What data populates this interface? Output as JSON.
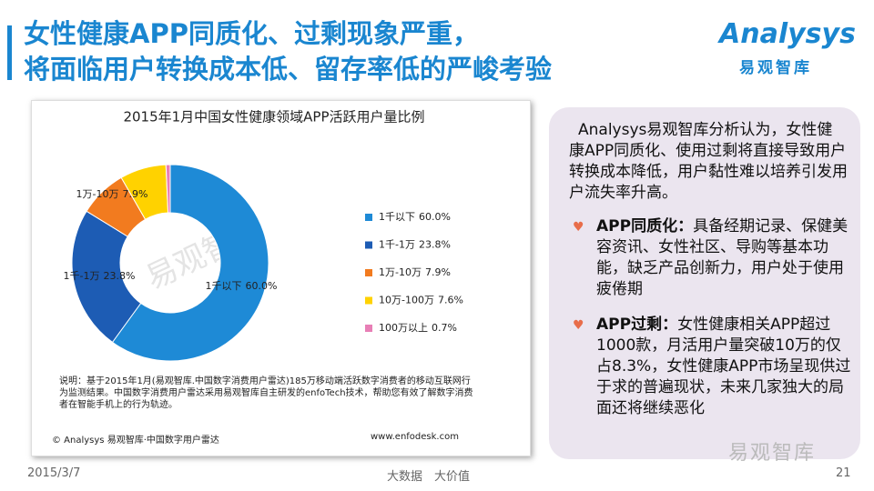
{
  "header": {
    "title_lines": [
      "女性健康APP同质化、过剩现象严重，",
      "将面临用户转换成本低、留存率低的严峻考验"
    ],
    "logo": "Analysys",
    "logo_cn": "易观智库"
  },
  "chart_data": {
    "type": "donut",
    "title": "2015年1月中国女性健康领域APP活跃用户量比例",
    "categories": [
      "1千以下",
      "1千-1万",
      "1万-10万",
      "10万-100万",
      "100万以上"
    ],
    "values": [
      60.0,
      23.8,
      7.9,
      7.6,
      0.7
    ],
    "value_labels": [
      "60.0%",
      "23.8%",
      "7.9%",
      "7.6%",
      "0.7%"
    ],
    "colors": [
      "#1e8ad6",
      "#1d5cb4",
      "#f27b1f",
      "#ffd200",
      "#e87fb6"
    ],
    "legend": "right",
    "watermark": "易观智库",
    "note": "说明：基于2015年1月(易观智库.中国数字消费用户雷达)185万移动端活跃数字消费者的移动互联网行为监测结果。中国数字消费用户雷达采用易观智库自主研发的enfoTech技术，帮助您有效了解数字消费者在智能手机上的行为轨迹。",
    "source": "© Analysys 易观智库·中国数字用户雷达",
    "website": "www.enfodesk.com"
  },
  "panel": {
    "intro": "Analysys易观智库分析认为，女性健康APP同质化、使用过剩将直接导致用户转换成本降低，用户黏性难以培养引发用户流失率升高。",
    "bullets": [
      {
        "term": "APP同质化：",
        "text": "具备经期记录、保健美容资讯、女性社区、导购等基本功能，缺乏产品创新力，用户处于使用疲倦期"
      },
      {
        "term": "APP过剩：",
        "text": "女性健康相关APP超过1000款，月活用户量突破10万的仅占8.3%，女性健康APP市场呈现供过于求的普遍现状，未来几家独大的局面还将继续恶化"
      }
    ]
  },
  "footer": {
    "date": "2015/3/7",
    "slogan": "大数据　大价值",
    "page": "21",
    "wechat": "易观智库"
  }
}
